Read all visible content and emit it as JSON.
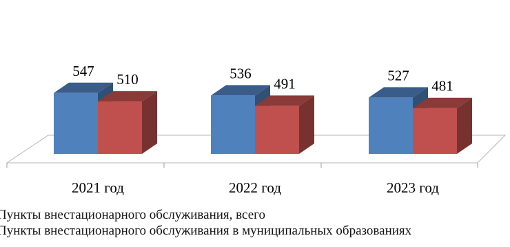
{
  "chart_data": {
    "type": "bar",
    "categories": [
      "2021 год",
      "2022 год",
      "2023 год"
    ],
    "series": [
      {
        "name": "Пункты внестационарного обслуживания, всего",
        "values": [
          547,
          536,
          527
        ],
        "color": "#4f81bd"
      },
      {
        "name": "Пункты внестационарного обслуживания в муниципальных образованиях",
        "values": [
          510,
          491,
          481
        ],
        "color": "#c0504d"
      }
    ],
    "title": "",
    "xlabel": "",
    "ylabel": "",
    "style": "3d-clustered-columns",
    "data_labels": true,
    "grid": false,
    "legend_position": "bottom-left"
  }
}
